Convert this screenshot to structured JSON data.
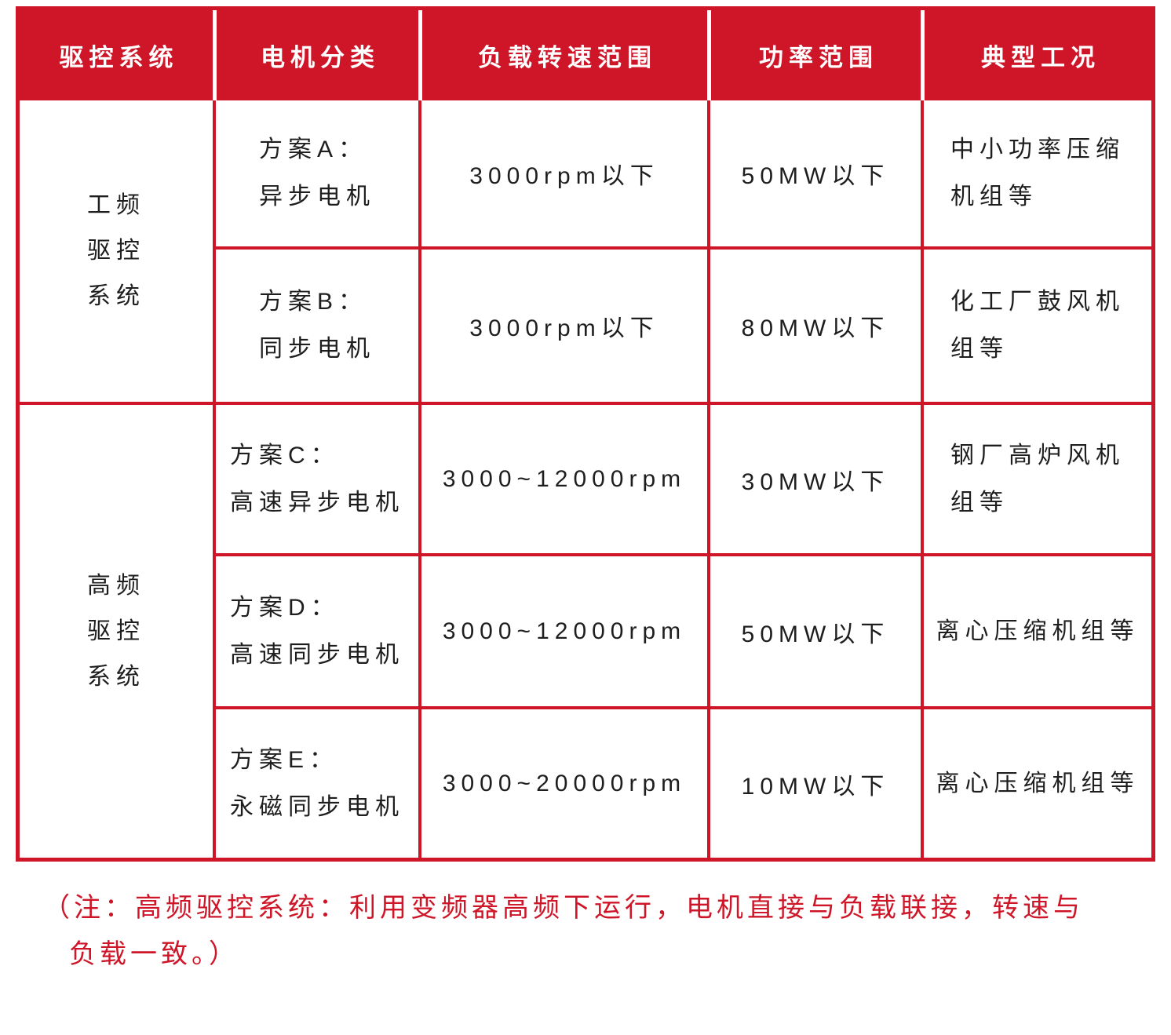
{
  "chart_data": {
    "type": "table",
    "columns": [
      "驱控系统",
      "电机分类",
      "负载转速范围",
      "功率范围",
      "典型工况"
    ],
    "rows": [
      [
        "工频驱控系统",
        "方案A：异步电机",
        "3000rpm以下",
        "50MW以下",
        "中小功率压缩机组等"
      ],
      [
        "工频驱控系统",
        "方案B：同步电机",
        "3000rpm以下",
        "80MW以下",
        "化工厂鼓风机组等"
      ],
      [
        "高频驱控系统",
        "方案C：高速异步电机",
        "3000~12000rpm",
        "30MW以下",
        "钢厂高炉风机组等"
      ],
      [
        "高频驱控系统",
        "方案D：高速同步电机",
        "3000~12000rpm",
        "50MW以下",
        "离心压缩机组等"
      ],
      [
        "高频驱控系统",
        "方案E：永磁同步电机",
        "3000~20000rpm",
        "10MW以下",
        "离心压缩机组等"
      ]
    ],
    "note": "（注：高频驱控系统：利用变频器高频下运行，电机直接与负载联接，转速与负载一致。）"
  },
  "table": {
    "headers": [
      "驱控系统",
      "电机分类",
      "负载转速范围",
      "功率范围",
      "典型工况"
    ],
    "groups": [
      {
        "system_lines": [
          "工频",
          "驱控",
          "系统"
        ],
        "rows": [
          {
            "motor_lines": [
              "方案A：",
              "异步电机"
            ],
            "speed": "3000rpm以下",
            "power": "50MW以下",
            "app_lines": [
              "中小功率压缩",
              "机组等"
            ]
          },
          {
            "motor_lines": [
              "方案B：",
              "同步电机"
            ],
            "speed": "3000rpm以下",
            "power": "80MW以下",
            "app_lines": [
              "化工厂鼓风机",
              "组等"
            ]
          }
        ]
      },
      {
        "system_lines": [
          "高频",
          "驱控",
          "系统"
        ],
        "rows": [
          {
            "motor_lines": [
              "方案C：",
              "高速异步电机"
            ],
            "speed": "3000~12000rpm",
            "power": "30MW以下",
            "app_lines": [
              "钢厂高炉风机",
              "组等"
            ]
          },
          {
            "motor_lines": [
              "方案D：",
              "高速同步电机"
            ],
            "speed": "3000~12000rpm",
            "power": "50MW以下",
            "app_lines": [
              "离心压缩机组等"
            ]
          },
          {
            "motor_lines": [
              "方案E：",
              "永磁同步电机"
            ],
            "speed": "3000~20000rpm",
            "power": "10MW以下",
            "app_lines": [
              "离心压缩机组等"
            ]
          }
        ]
      }
    ]
  },
  "note": {
    "line1": "（注：高频驱控系统：利用变频器高频下运行，电机直接与负载联接，转速与",
    "line2": "负载一致。）"
  },
  "colors": {
    "accent_red": "#CE1628",
    "body_text": "#1E1E1E",
    "header_text": "#FFFFFF"
  }
}
